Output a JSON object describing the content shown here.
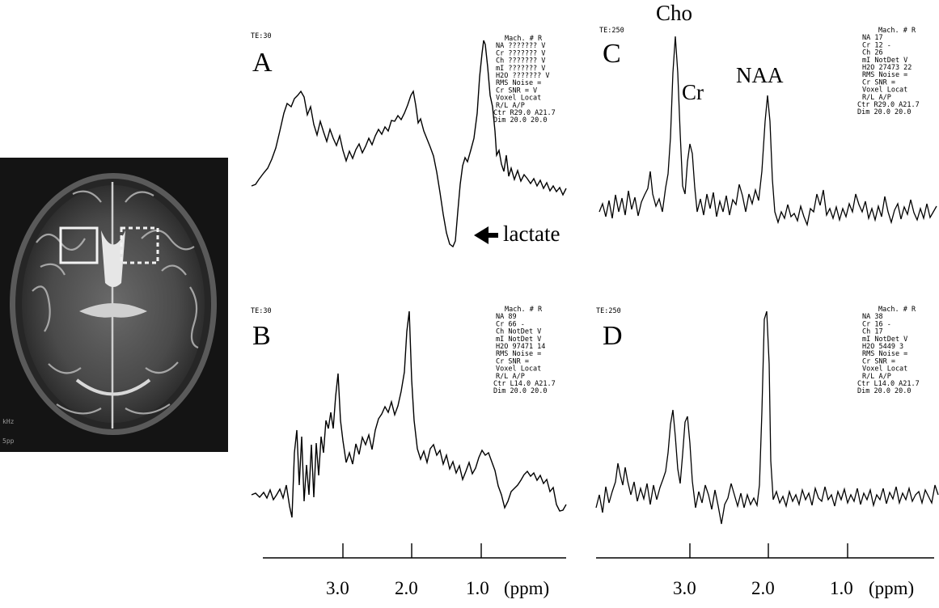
{
  "figure": {
    "mri": {
      "overlay_text": [
        "kHz",
        "5pp"
      ]
    },
    "panels": [
      {
        "id": "A",
        "letter": "A",
        "te": "TE:30",
        "readout": [
          "Mach. #   R",
          "NA  ???????  V",
          "Cr  ???????  V",
          "Ch  ???????  V",
          "mI  ???????  V",
          "H2O ???????  V",
          "RMS Noise  =",
          "Cr SNR     = V",
          "    Voxel Locat",
          "    R/L    A/P",
          "Ctr R29.0 A21.7",
          "Dim  20.0  20.0"
        ],
        "annotation": "lactate"
      },
      {
        "id": "B",
        "letter": "B",
        "te": "TE:30",
        "readout": [
          "Mach. #   R",
          "NA      89",
          "Cr      66  -",
          "Ch  NotDet  V",
          "mI  NotDet  V",
          "H2O  97471  14",
          "RMS Noise  =",
          "Cr SNR     =",
          "    Voxel Locat",
          "    R/L    A/P",
          "Ctr L14.0 A21.7",
          "Dim  20.0  20.0"
        ]
      },
      {
        "id": "C",
        "letter": "C",
        "te": "TE:250",
        "readout": [
          "Mach. #   R",
          "NA      17",
          "Cr      12  -",
          "Ch      26",
          "mI  NotDet  V",
          "H2O  27473  22",
          "RMS Noise  =",
          "Cr SNR     =",
          "    Voxel Locat",
          "    R/L    A/P",
          "Ctr R29.0 A21.7",
          "Dim  20.0  20.0"
        ],
        "peak_labels": {
          "cho": "Cho",
          "cr": "Cr",
          "naa": "NAA"
        }
      },
      {
        "id": "D",
        "letter": "D",
        "te": "TE:250",
        "readout": [
          "Mach. #   R",
          "NA      38",
          "Cr      16  -",
          "Ch      17",
          "mI  NotDet  V",
          "H2O   5449  3",
          "RMS Noise  =",
          "Cr SNR     =",
          "    Voxel Locat",
          "    R/L    A/P",
          "Ctr L14.0 A21.7",
          "Dim  20.0  20.0"
        ]
      }
    ],
    "axes": [
      {
        "ticks": [
          "3.0",
          "2.0",
          "1.0"
        ],
        "unit": "(ppm)"
      },
      {
        "ticks": [
          "3.0",
          "2.0",
          "1.0"
        ],
        "unit": "(ppm)"
      }
    ]
  }
}
